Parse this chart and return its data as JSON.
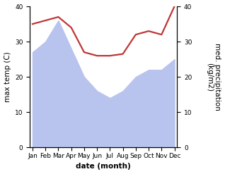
{
  "months": [
    "Jan",
    "Feb",
    "Mar",
    "Apr",
    "May",
    "Jun",
    "Jul",
    "Aug",
    "Sep",
    "Oct",
    "Nov",
    "Dec"
  ],
  "x": [
    0,
    1,
    2,
    3,
    4,
    5,
    6,
    7,
    8,
    9,
    10,
    11
  ],
  "precipitation": [
    27,
    30,
    36,
    28,
    20,
    16,
    14,
    16,
    20,
    22,
    22,
    25
  ],
  "temperature": [
    35,
    36,
    37,
    34,
    27,
    26,
    26,
    26.5,
    32,
    33,
    32,
    40
  ],
  "temp_ylim": [
    0,
    40
  ],
  "precip_ylim": [
    0,
    40
  ],
  "yticks": [
    0,
    10,
    20,
    30,
    40
  ],
  "fill_color": "#b8c4ee",
  "line_color": "#c03535",
  "left_ylabel": "max temp (C)",
  "right_ylabel": "med. precipitation\n(kg/m2)",
  "xlabel": "date (month)",
  "line_width": 1.6,
  "font_size_ticks": 6.5,
  "font_size_label": 7.5
}
